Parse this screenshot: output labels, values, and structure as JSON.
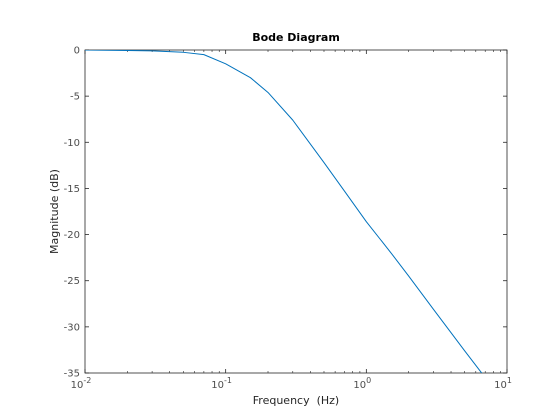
{
  "chart_data": {
    "type": "line",
    "title": "Bode Diagram",
    "xlabel": "Frequency  (Hz)",
    "ylabel": "Magnitude (dB)",
    "x_scale": "log",
    "xlim": [
      0.01,
      10
    ],
    "ylim": [
      -35,
      0
    ],
    "grid": false,
    "x_ticks": [
      {
        "value": 0.01,
        "base": "10",
        "exp": "-2"
      },
      {
        "value": 0.1,
        "base": "10",
        "exp": "-1"
      },
      {
        "value": 1,
        "base": "10",
        "exp": "0"
      },
      {
        "value": 10,
        "base": "10",
        "exp": "1"
      }
    ],
    "y_ticks": [
      {
        "value": 0,
        "label": "0"
      },
      {
        "value": -5,
        "label": "-5"
      },
      {
        "value": -10,
        "label": "-10"
      },
      {
        "value": -15,
        "label": "-15"
      },
      {
        "value": -20,
        "label": "-20"
      },
      {
        "value": -25,
        "label": "-25"
      },
      {
        "value": -30,
        "label": "-30"
      },
      {
        "value": -35,
        "label": "-35"
      }
    ],
    "series": [
      {
        "color": "#0072bd",
        "x": [
          0.01,
          0.02,
          0.03,
          0.05,
          0.07,
          0.1,
          0.15,
          0.2,
          0.3,
          0.5,
          0.7,
          1.0,
          1.5,
          2.0,
          3.0,
          5.0,
          7.0,
          9.0
        ],
        "y": [
          0.0,
          -0.05,
          -0.1,
          -0.25,
          -0.5,
          -1.5,
          -3.0,
          -4.6,
          -7.6,
          -12.2,
          -15.3,
          -18.6,
          -22.0,
          -24.5,
          -28.1,
          -32.6,
          -35.5,
          -37.7
        ]
      }
    ]
  }
}
